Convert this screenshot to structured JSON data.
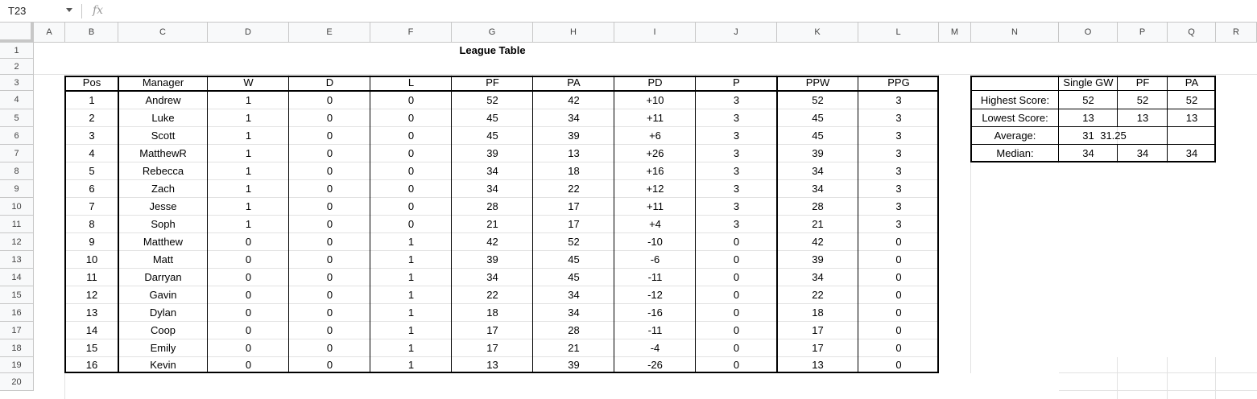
{
  "formula_bar": {
    "name_box": "T23",
    "fx_label": "fx",
    "content": ""
  },
  "column_headers": [
    "A",
    "B",
    "C",
    "D",
    "E",
    "F",
    "G",
    "H",
    "I",
    "J",
    "K",
    "L",
    "M",
    "N",
    "O",
    "P",
    "Q",
    "R"
  ],
  "row_headers": [
    "1",
    "2",
    "3",
    "4",
    "5",
    "6",
    "7",
    "8",
    "9",
    "10",
    "11",
    "12",
    "13",
    "14",
    "15",
    "16",
    "17",
    "18",
    "19",
    "20"
  ],
  "title": "League Table",
  "league": {
    "headers": [
      "Pos",
      "Manager",
      "W",
      "D",
      "L",
      "PF",
      "PA",
      "PD",
      "P",
      "PPW",
      "PPG"
    ],
    "rows": [
      [
        "1",
        "Andrew",
        "1",
        "0",
        "0",
        "52",
        "42",
        "+10",
        "3",
        "52",
        "3"
      ],
      [
        "2",
        "Luke",
        "1",
        "0",
        "0",
        "45",
        "34",
        "+11",
        "3",
        "45",
        "3"
      ],
      [
        "3",
        "Scott",
        "1",
        "0",
        "0",
        "45",
        "39",
        "+6",
        "3",
        "45",
        "3"
      ],
      [
        "4",
        "MatthewR",
        "1",
        "0",
        "0",
        "39",
        "13",
        "+26",
        "3",
        "39",
        "3"
      ],
      [
        "5",
        "Rebecca",
        "1",
        "0",
        "0",
        "34",
        "18",
        "+16",
        "3",
        "34",
        "3"
      ],
      [
        "6",
        "Zach",
        "1",
        "0",
        "0",
        "34",
        "22",
        "+12",
        "3",
        "34",
        "3"
      ],
      [
        "7",
        "Jesse",
        "1",
        "0",
        "0",
        "28",
        "17",
        "+11",
        "3",
        "28",
        "3"
      ],
      [
        "8",
        "Soph",
        "1",
        "0",
        "0",
        "21",
        "17",
        "+4",
        "3",
        "21",
        "3"
      ],
      [
        "9",
        "Matthew",
        "0",
        "0",
        "1",
        "42",
        "52",
        "-10",
        "0",
        "42",
        "0"
      ],
      [
        "10",
        "Matt",
        "0",
        "0",
        "1",
        "39",
        "45",
        "-6",
        "0",
        "39",
        "0"
      ],
      [
        "11",
        "Darryan",
        "0",
        "0",
        "1",
        "34",
        "45",
        "-11",
        "0",
        "34",
        "0"
      ],
      [
        "12",
        "Gavin",
        "0",
        "0",
        "1",
        "22",
        "34",
        "-12",
        "0",
        "22",
        "0"
      ],
      [
        "13",
        "Dylan",
        "0",
        "0",
        "1",
        "18",
        "34",
        "-16",
        "0",
        "18",
        "0"
      ],
      [
        "14",
        "Coop",
        "0",
        "0",
        "1",
        "17",
        "28",
        "-11",
        "0",
        "17",
        "0"
      ],
      [
        "15",
        "Emily",
        "0",
        "0",
        "1",
        "17",
        "21",
        "-4",
        "0",
        "17",
        "0"
      ],
      [
        "16",
        "Kevin",
        "0",
        "0",
        "1",
        "13",
        "39",
        "-26",
        "0",
        "13",
        "0"
      ]
    ]
  },
  "stats": {
    "headers": [
      "",
      "Single GW",
      "PF",
      "PA"
    ],
    "rows": [
      [
        "Highest Score:",
        "52",
        "52",
        "52"
      ],
      [
        "Lowest Score:",
        "13",
        "13",
        "13"
      ],
      [
        "Average:",
        "31",
        "31.25",
        ""
      ],
      [
        "Median:",
        "34",
        "34",
        "34"
      ]
    ]
  }
}
